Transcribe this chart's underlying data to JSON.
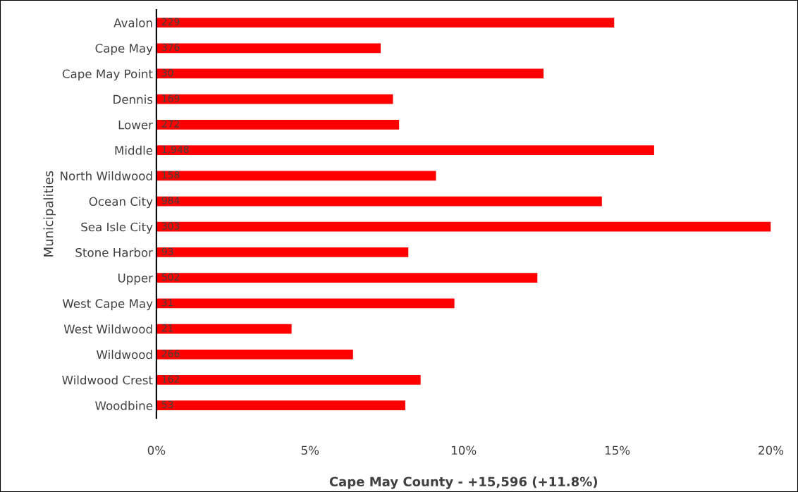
{
  "chart_data": {
    "type": "bar",
    "orientation": "horizontal",
    "xlabel": "Cape May County - +15,596 (+11.8%)",
    "ylabel": "Municipalities",
    "categories": [
      "Avalon",
      "Cape May",
      "Cape May Point",
      "Dennis",
      "Lower",
      "Middle",
      "North Wildwood",
      "Ocean City",
      "Sea Isle City",
      "Stone Harbor",
      "Upper",
      "West Cape May",
      "West Wildwood",
      "Wildwood",
      "Wildwood Crest",
      "Woodbine"
    ],
    "values": [
      14.9,
      7.3,
      12.6,
      7.7,
      7.9,
      16.2,
      9.1,
      14.5,
      20.0,
      8.2,
      12.4,
      9.7,
      4.4,
      6.4,
      8.6,
      8.1
    ],
    "annotations": [
      "229",
      "376",
      "30",
      "169",
      "272",
      "1,948",
      "158",
      "984",
      "303",
      "93",
      "502",
      "31",
      "21",
      "266",
      "162",
      "53"
    ],
    "color": "#ff0000",
    "xlim": [
      0,
      20
    ],
    "xticks": [
      {
        "value": 0,
        "label": "0%"
      },
      {
        "value": 5,
        "label": "5%"
      },
      {
        "value": 10,
        "label": "10%"
      },
      {
        "value": 15,
        "label": "15%"
      },
      {
        "value": 20,
        "label": "20%"
      }
    ],
    "grid": false,
    "legend": false
  }
}
